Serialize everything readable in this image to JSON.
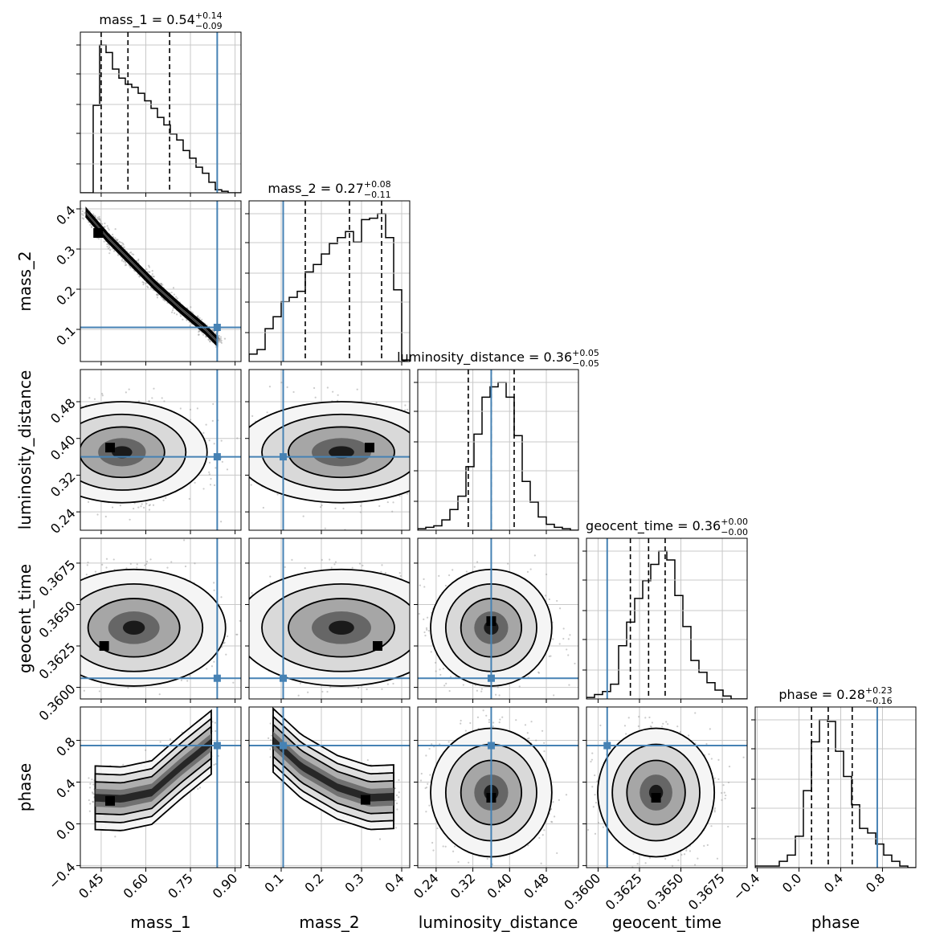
{
  "chart_data": {
    "type": "corner",
    "parameters": [
      "mass_1",
      "mass_2",
      "luminosity_distance",
      "geocent_time",
      "phase"
    ],
    "truth_color": "#4682b4",
    "panel_color": "#000000",
    "ranges": {
      "mass_1": [
        0.38,
        0.92
      ],
      "mass_2": [
        0.02,
        0.42
      ],
      "luminosity_distance": [
        0.2,
        0.55
      ],
      "geocent_time": [
        0.3593,
        0.369
      ],
      "phase": [
        -0.42,
        1.12
      ]
    },
    "ticks": {
      "mass_1": [
        0.45,
        0.6,
        0.75,
        0.9
      ],
      "mass_2": [
        0.1,
        0.2,
        0.3,
        0.4
      ],
      "luminosity_distance": [
        0.24,
        0.32,
        0.4,
        0.48
      ],
      "geocent_time": [
        0.36,
        0.3625,
        0.365,
        0.3675
      ],
      "phase": [
        -0.4,
        0.0,
        0.4,
        0.8
      ]
    },
    "tick_labels": {
      "mass_1": [
        "0.45",
        "0.60",
        "0.75",
        "0.90"
      ],
      "mass_2": [
        "0.1",
        "0.2",
        "0.3",
        "0.4"
      ],
      "luminosity_distance": [
        "0.24",
        "0.32",
        "0.40",
        "0.48"
      ],
      "geocent_time": [
        "0.3600",
        "0.3625",
        "0.3650",
        "0.3675"
      ],
      "phase": [
        "−0.4",
        "0.0",
        "0.4",
        "0.8"
      ]
    },
    "truths": {
      "mass_1": 0.84,
      "mass_2": 0.105,
      "luminosity_distance": 0.36,
      "geocent_time": 0.36055,
      "phase": 0.75
    },
    "titles": [
      {
        "name": "mass_1",
        "median": "0.54",
        "plus": "+0.14",
        "minus": "−0.09"
      },
      {
        "name": "mass_2",
        "median": "0.27",
        "plus": "+0.08",
        "minus": "−0.11"
      },
      {
        "name": "luminosity_distance",
        "median": "0.36",
        "plus": "+0.05",
        "minus": "−0.05"
      },
      {
        "name": "geocent_time",
        "median": "0.36",
        "plus": "+0.00",
        "minus": "−0.00"
      },
      {
        "name": "phase",
        "median": "0.28",
        "plus": "+0.23",
        "minus": "−0.16"
      }
    ],
    "quantiles": {
      "mass_1": [
        0.45,
        0.54,
        0.68
      ],
      "mass_2": [
        0.16,
        0.27,
        0.35
      ],
      "luminosity_distance": [
        0.31,
        0.36,
        0.41
      ],
      "geocent_time": [
        0.36195,
        0.36305,
        0.36405
      ],
      "phase": [
        0.12,
        0.28,
        0.51
      ]
    },
    "histograms": {
      "mass_1": {
        "edges": [
          0.38,
          0.92
        ],
        "counts": [
          0,
          0,
          0.58,
          0.98,
          0.93,
          0.82,
          0.76,
          0.72,
          0.7,
          0.66,
          0.61,
          0.56,
          0.5,
          0.45,
          0.39,
          0.35,
          0.28,
          0.23,
          0.17,
          0.13,
          0.07,
          0.02,
          0.01,
          0,
          0
        ]
      },
      "mass_2": {
        "edges": [
          0.02,
          0.42
        ],
        "counts": [
          0.05,
          0.08,
          0.22,
          0.3,
          0.4,
          0.43,
          0.47,
          0.6,
          0.65,
          0.72,
          0.79,
          0.83,
          0.87,
          0.8,
          0.95,
          0.96,
          0.99,
          0.83,
          0.48,
          0.01
        ]
      },
      "luminosity_distance": {
        "edges": [
          0.2,
          0.55
        ],
        "counts": [
          0.01,
          0.02,
          0.03,
          0.07,
          0.14,
          0.23,
          0.43,
          0.65,
          0.9,
          0.97,
          1.0,
          0.9,
          0.64,
          0.33,
          0.19,
          0.09,
          0.04,
          0.02,
          0.01,
          0
        ]
      },
      "geocent_time": {
        "edges": [
          0.3593,
          0.369
        ],
        "counts": [
          0.01,
          0.03,
          0.05,
          0.1,
          0.36,
          0.52,
          0.68,
          0.8,
          0.91,
          1.0,
          0.94,
          0.7,
          0.49,
          0.26,
          0.18,
          0.11,
          0.06,
          0.02,
          0,
          0
        ]
      },
      "phase": {
        "edges": [
          -0.42,
          1.12
        ],
        "counts": [
          0.01,
          0.01,
          0.01,
          0.04,
          0.08,
          0.2,
          0.49,
          0.8,
          0.94,
          0.93,
          0.74,
          0.58,
          0.4,
          0.25,
          0.22,
          0.15,
          0.08,
          0.04,
          0.01,
          0
        ]
      }
    },
    "density_shapes": {
      "mass_2|mass_1": {
        "kind": "curve",
        "points": [
          [
            0.4,
            0.39
          ],
          [
            0.47,
            0.33
          ],
          [
            0.55,
            0.27
          ],
          [
            0.63,
            0.21
          ],
          [
            0.72,
            0.15
          ],
          [
            0.8,
            0.1
          ],
          [
            0.84,
            0.07
          ]
        ],
        "width": 0.03,
        "peak": [
          0.44,
          0.34
        ]
      },
      "luminosity_distance|mass_1": {
        "kind": "blob",
        "center": [
          0.52,
          0.37
        ],
        "spread": [
          0.13,
          0.05
        ],
        "peak": [
          0.48,
          0.38
        ]
      },
      "luminosity_distance|mass_2": {
        "kind": "blob",
        "center": [
          0.25,
          0.37
        ],
        "spread": [
          0.12,
          0.05
        ],
        "peak": [
          0.32,
          0.38
        ]
      },
      "geocent_time|mass_1": {
        "kind": "blob",
        "center": [
          0.56,
          0.3636
        ],
        "spread": [
          0.14,
          0.0016
        ],
        "peak": [
          0.46,
          0.3625
        ]
      },
      "geocent_time|mass_2": {
        "kind": "blob",
        "center": [
          0.25,
          0.3636
        ],
        "spread": [
          0.12,
          0.0016
        ],
        "peak": [
          0.34,
          0.3625
        ]
      },
      "geocent_time|luminosity_distance": {
        "kind": "blob",
        "center": [
          0.36,
          0.3636
        ],
        "spread": [
          0.06,
          0.0016
        ],
        "peak": [
          0.36,
          0.364
        ]
      },
      "phase|mass_1": {
        "kind": "curve",
        "points": [
          [
            0.43,
            0.25
          ],
          [
            0.52,
            0.24
          ],
          [
            0.62,
            0.3
          ],
          [
            0.72,
            0.55
          ],
          [
            0.82,
            0.78
          ]
        ],
        "width": 0.22,
        "peak": [
          0.48,
          0.22
        ]
      },
      "phase|mass_2": {
        "kind": "curve",
        "points": [
          [
            0.08,
            0.8
          ],
          [
            0.15,
            0.55
          ],
          [
            0.24,
            0.35
          ],
          [
            0.32,
            0.25
          ],
          [
            0.38,
            0.26
          ]
        ],
        "width": 0.22,
        "peak": [
          0.31,
          0.23
        ]
      },
      "phase|luminosity_distance": {
        "kind": "blob",
        "center": [
          0.36,
          0.3
        ],
        "spread": [
          0.06,
          0.28
        ],
        "peak": [
          0.36,
          0.25
        ]
      },
      "phase|geocent_time": {
        "kind": "blob",
        "center": [
          0.3635,
          0.3
        ],
        "spread": [
          0.0016,
          0.28
        ],
        "peak": [
          0.3635,
          0.25
        ]
      }
    }
  }
}
